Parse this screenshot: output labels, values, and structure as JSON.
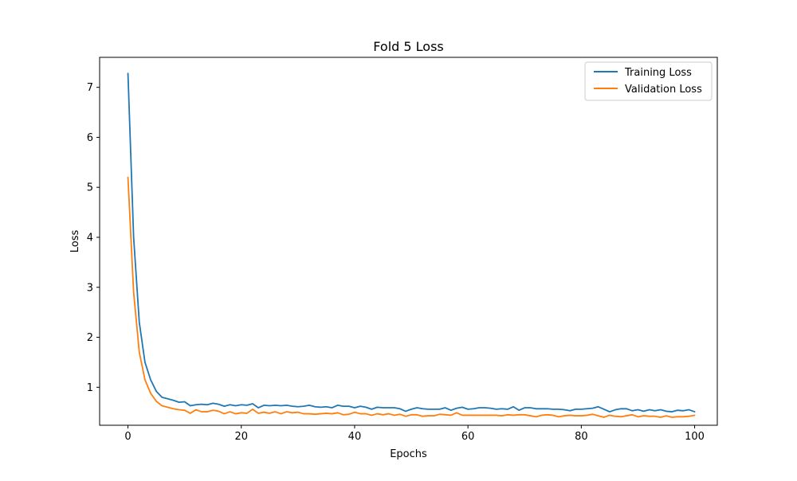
{
  "chart_data": {
    "type": "line",
    "title": "Fold 5 Loss",
    "xlabel": "Epochs",
    "ylabel": "Loss",
    "xlim": [
      -5,
      104
    ],
    "ylim": [
      0.24,
      7.6
    ],
    "xticks": [
      0,
      20,
      40,
      60,
      80,
      100
    ],
    "yticks": [
      1,
      2,
      3,
      4,
      5,
      6,
      7
    ],
    "xtick_labels": [
      "0",
      "20",
      "40",
      "60",
      "80",
      "100"
    ],
    "ytick_labels": [
      "1",
      "2",
      "3",
      "4",
      "5",
      "6",
      "7"
    ],
    "grid": false,
    "legend_position": "top-right",
    "series": [
      {
        "name": "Training Loss",
        "color": "#1f77b4",
        "x_start": 0,
        "values": [
          7.28,
          4.0,
          2.3,
          1.5,
          1.15,
          0.92,
          0.8,
          0.77,
          0.74,
          0.7,
          0.71,
          0.63,
          0.65,
          0.66,
          0.65,
          0.68,
          0.66,
          0.62,
          0.65,
          0.63,
          0.65,
          0.64,
          0.67,
          0.59,
          0.64,
          0.63,
          0.64,
          0.63,
          0.64,
          0.62,
          0.61,
          0.62,
          0.64,
          0.61,
          0.6,
          0.61,
          0.59,
          0.64,
          0.62,
          0.62,
          0.59,
          0.62,
          0.6,
          0.56,
          0.6,
          0.59,
          0.59,
          0.59,
          0.57,
          0.52,
          0.56,
          0.59,
          0.57,
          0.56,
          0.56,
          0.56,
          0.59,
          0.54,
          0.58,
          0.6,
          0.56,
          0.57,
          0.59,
          0.59,
          0.58,
          0.56,
          0.57,
          0.56,
          0.61,
          0.54,
          0.59,
          0.59,
          0.57,
          0.57,
          0.57,
          0.56,
          0.56,
          0.55,
          0.53,
          0.56,
          0.56,
          0.57,
          0.58,
          0.61,
          0.56,
          0.51,
          0.55,
          0.57,
          0.57,
          0.53,
          0.55,
          0.52,
          0.55,
          0.53,
          0.55,
          0.52,
          0.51,
          0.54,
          0.53,
          0.55,
          0.51
        ]
      },
      {
        "name": "Validation Loss",
        "color": "#ff7f0e",
        "x_start": 0,
        "values": [
          5.2,
          2.9,
          1.7,
          1.15,
          0.88,
          0.72,
          0.63,
          0.6,
          0.57,
          0.55,
          0.54,
          0.48,
          0.55,
          0.51,
          0.51,
          0.54,
          0.52,
          0.47,
          0.51,
          0.47,
          0.49,
          0.48,
          0.56,
          0.48,
          0.5,
          0.48,
          0.51,
          0.47,
          0.51,
          0.49,
          0.5,
          0.47,
          0.47,
          0.46,
          0.47,
          0.48,
          0.47,
          0.49,
          0.45,
          0.46,
          0.5,
          0.47,
          0.47,
          0.44,
          0.47,
          0.45,
          0.47,
          0.44,
          0.46,
          0.42,
          0.45,
          0.45,
          0.42,
          0.43,
          0.43,
          0.46,
          0.45,
          0.44,
          0.49,
          0.44,
          0.44,
          0.44,
          0.44,
          0.44,
          0.44,
          0.44,
          0.43,
          0.45,
          0.44,
          0.45,
          0.45,
          0.43,
          0.41,
          0.44,
          0.45,
          0.44,
          0.41,
          0.43,
          0.44,
          0.43,
          0.43,
          0.44,
          0.46,
          0.43,
          0.4,
          0.44,
          0.42,
          0.41,
          0.43,
          0.45,
          0.41,
          0.43,
          0.42,
          0.42,
          0.4,
          0.43,
          0.4,
          0.41,
          0.41,
          0.42,
          0.44
        ]
      }
    ]
  }
}
